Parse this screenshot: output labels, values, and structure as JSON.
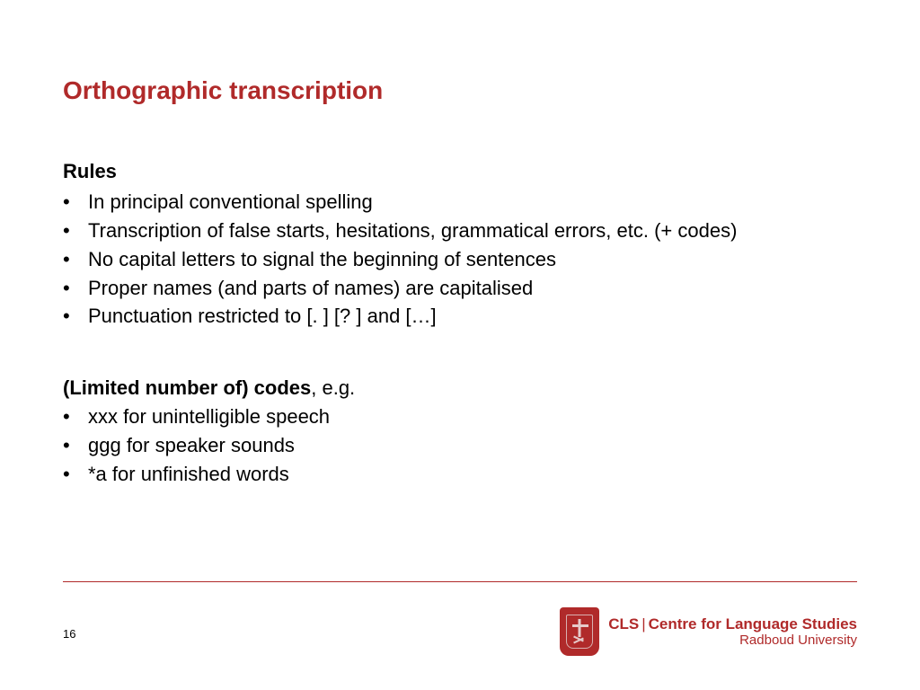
{
  "title": "Orthographic transcription",
  "section1": {
    "heading": "Rules",
    "bullets": [
      "In principal conventional spelling",
      "Transcription of false starts, hesitations, grammatical errors, etc. (+ codes)",
      "No capital letters to signal the beginning of sentences",
      "Proper names (and parts of names) are capitalised",
      "Punctuation restricted to [. ] [? ] and […]"
    ]
  },
  "section2": {
    "heading_bold": "(Limited number of) codes",
    "heading_rest": ", e.g.",
    "bullets": [
      "xxx for unintelligible speech",
      "ggg for speaker sounds",
      "*a for unfinished words"
    ]
  },
  "page_number": "16",
  "footer": {
    "line1_left": "CLS",
    "line1_right": "Centre for Language Studies",
    "line2": "Radboud University"
  },
  "colors": {
    "accent": "#b02a2a",
    "text": "#000000",
    "background": "#ffffff"
  }
}
